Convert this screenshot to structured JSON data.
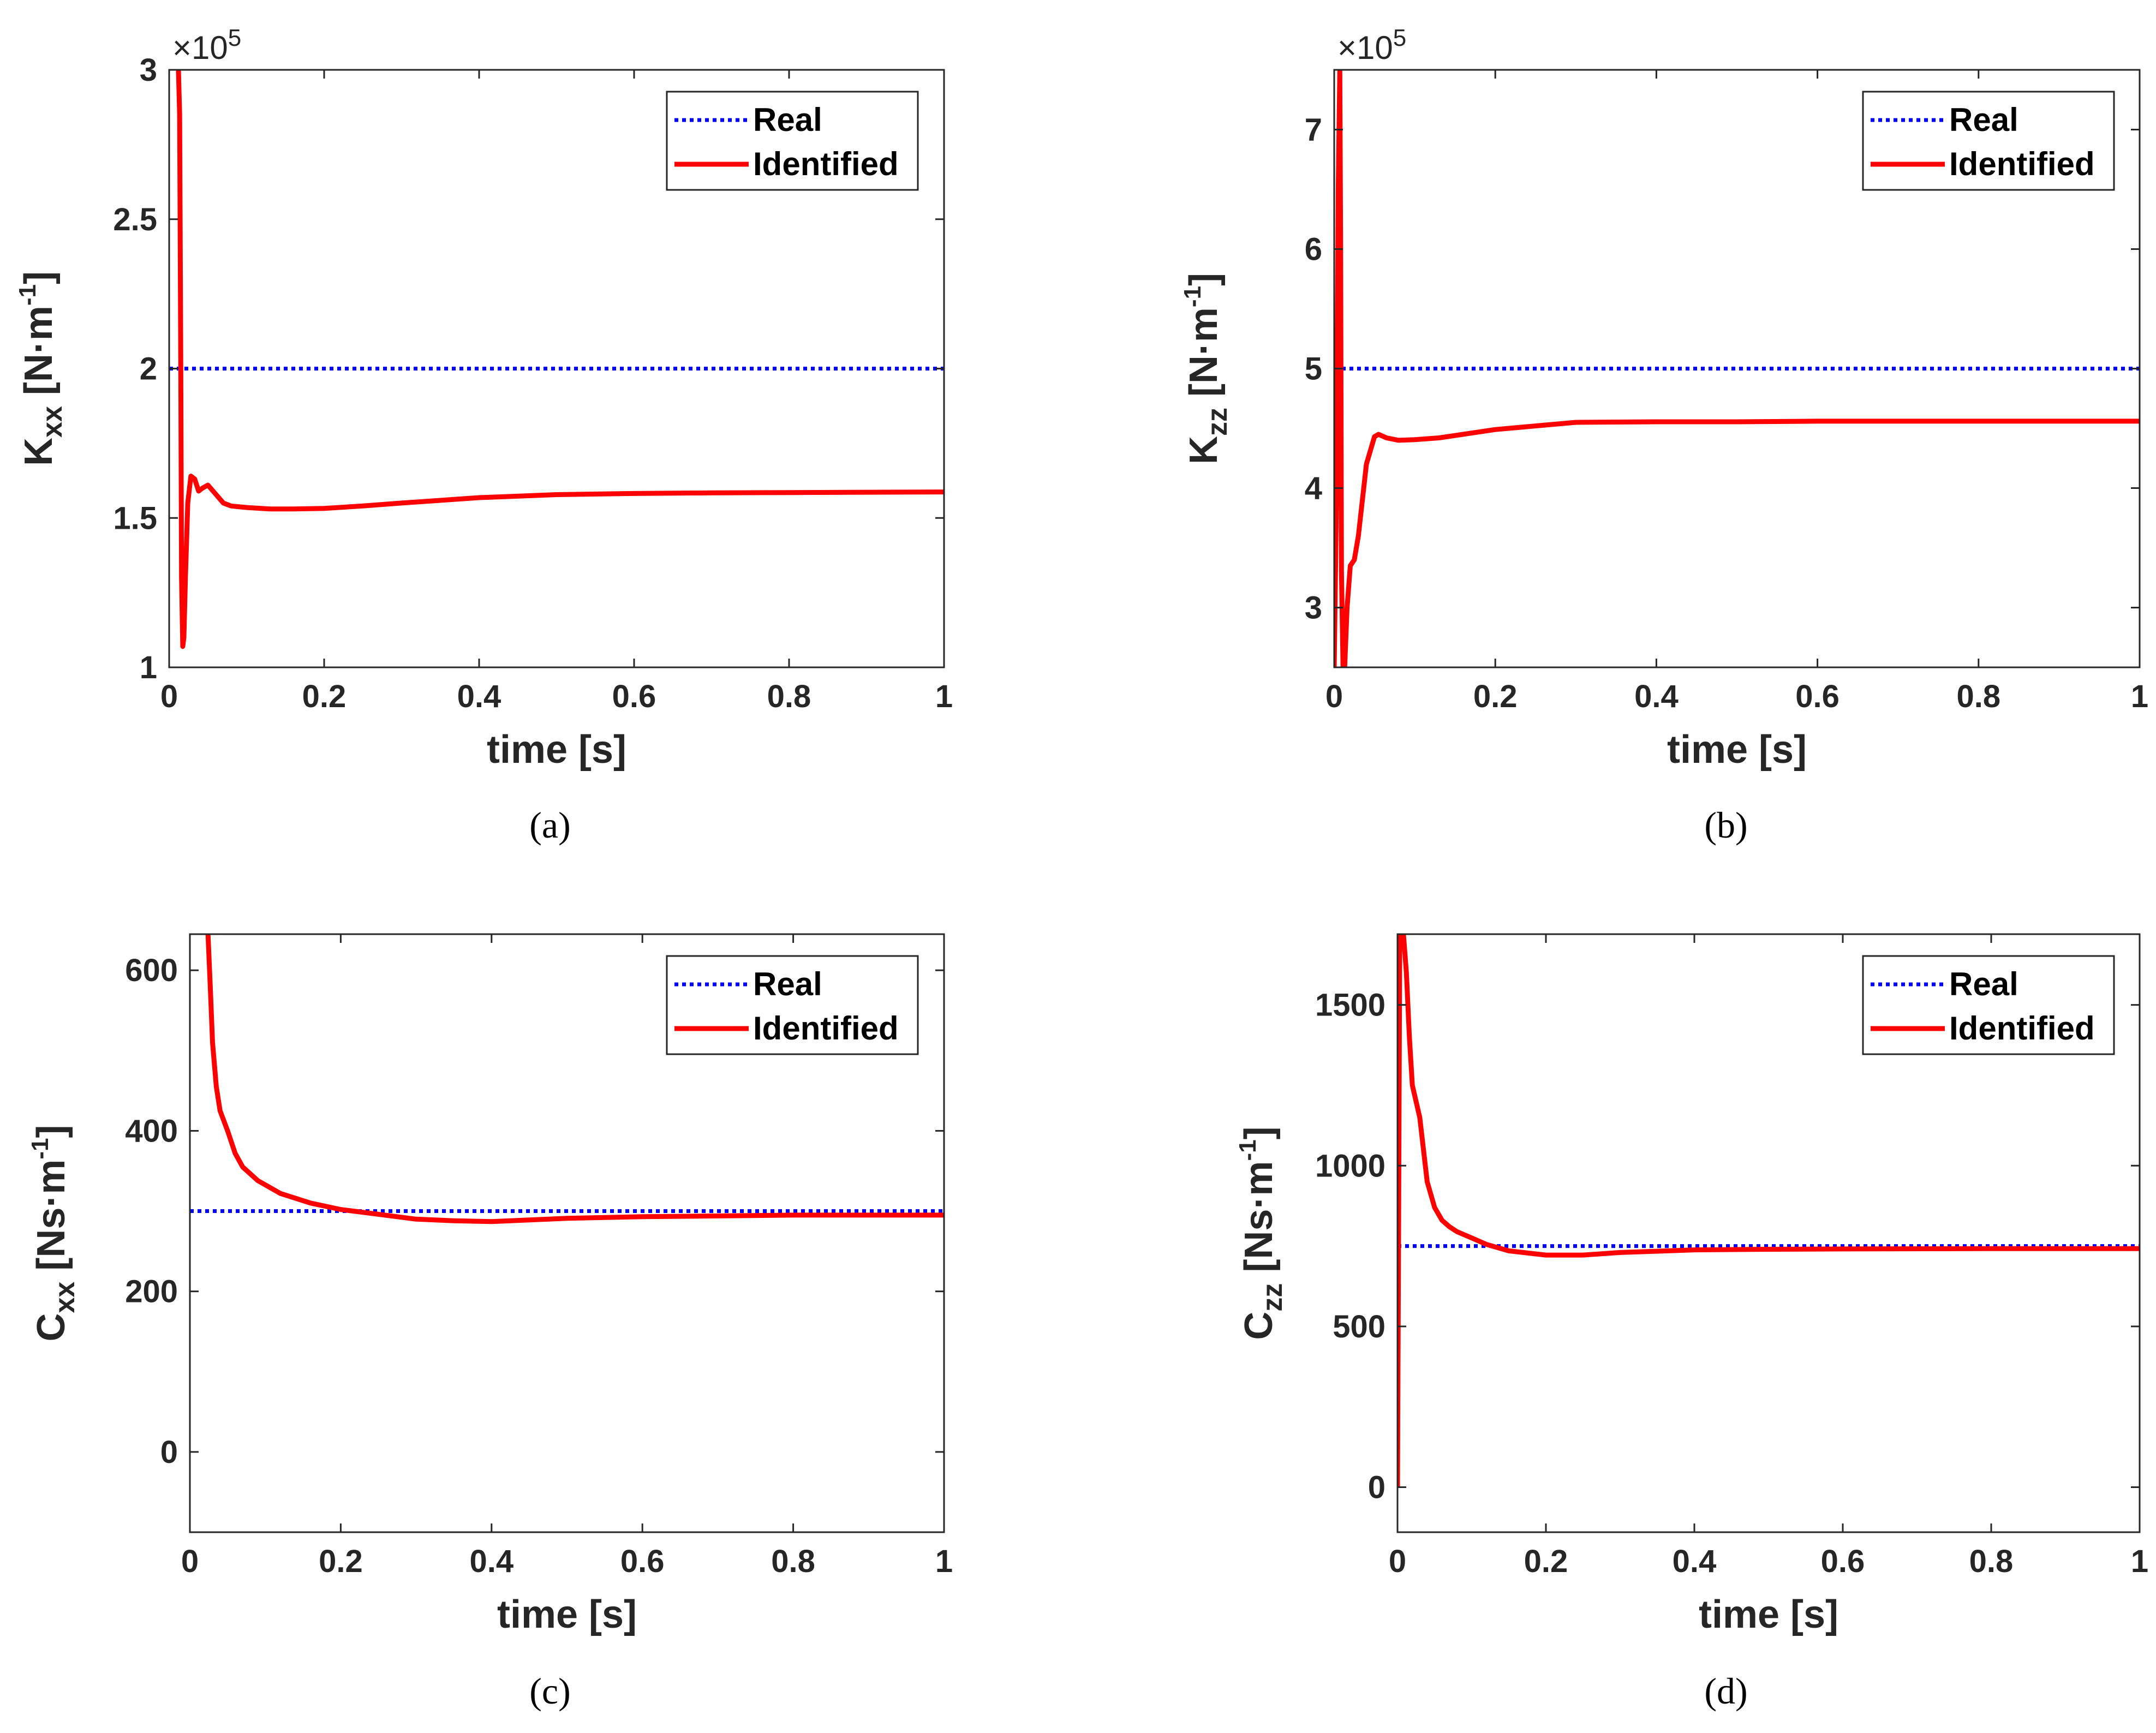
{
  "colors": {
    "real": "#0000ff",
    "identified": "#ff0000",
    "axis": "#262626"
  },
  "legend": {
    "real_label": "Real",
    "identified_label": "Identified"
  },
  "chart_data": [
    {
      "id": "a",
      "type": "line",
      "caption": "(a)",
      "ylabel": {
        "base": "K",
        "sub": "xx",
        "unit_pre": " [N·m",
        "unit_sup": "-1",
        "unit_post": "]"
      },
      "xlabel": "time [s]",
      "exponent": {
        "prefix": "×10",
        "power": "5"
      },
      "xlim": [
        0,
        1
      ],
      "ylim": [
        100000,
        300000
      ],
      "xticks": [
        0,
        0.2,
        0.4,
        0.6,
        0.8,
        1
      ],
      "xtick_labels": [
        "0",
        "0.2",
        "0.4",
        "0.6",
        "0.8",
        "1"
      ],
      "yticks": [
        100000,
        150000,
        200000,
        250000,
        300000
      ],
      "ytick_labels": [
        "1",
        "1.5",
        "2",
        "2.5",
        "3"
      ],
      "series": [
        {
          "name": "Real",
          "x": [
            0,
            1
          ],
          "y": [
            200000,
            200000
          ]
        },
        {
          "name": "Identified",
          "x": [
            0.012,
            0.0135,
            0.015,
            0.016,
            0.0175,
            0.019,
            0.021,
            0.024,
            0.028,
            0.033,
            0.038,
            0.043,
            0.05,
            0.06,
            0.07,
            0.08,
            0.1,
            0.13,
            0.16,
            0.2,
            0.25,
            0.3,
            0.4,
            0.5,
            0.6,
            0.7,
            0.8,
            1.0
          ],
          "y": [
            300000,
            285000,
            200000,
            130000,
            107000,
            110000,
            130000,
            155000,
            164000,
            163000,
            159000,
            160000,
            161000,
            158000,
            155000,
            154000,
            153500,
            153000,
            153000,
            153200,
            154000,
            155000,
            156800,
            157800,
            158200,
            158400,
            158500,
            158700
          ]
        }
      ]
    },
    {
      "id": "b",
      "type": "line",
      "caption": "(b)",
      "ylabel": {
        "base": "K",
        "sub": "zz",
        "unit_pre": " [N·m",
        "unit_sup": "-1",
        "unit_post": "]"
      },
      "xlabel": "time [s]",
      "exponent": {
        "prefix": "×10",
        "power": "5"
      },
      "xlim": [
        0,
        1
      ],
      "ylim": [
        250000,
        750000
      ],
      "xticks": [
        0,
        0.2,
        0.4,
        0.6,
        0.8,
        1
      ],
      "xtick_labels": [
        "0",
        "0.2",
        "0.4",
        "0.6",
        "0.8",
        "1"
      ],
      "yticks": [
        300000,
        400000,
        500000,
        600000,
        700000
      ],
      "ytick_labels": [
        "3",
        "4",
        "5",
        "6",
        "7"
      ],
      "series": [
        {
          "name": "Real",
          "x": [
            0,
            1
          ],
          "y": [
            500000,
            500000
          ]
        },
        {
          "name": "Identified",
          "x": [
            0.0,
            0.003,
            0.005,
            0.007,
            0.008,
            0.009,
            0.011,
            0.013,
            0.016,
            0.02,
            0.025,
            0.03,
            0.04,
            0.05,
            0.055,
            0.065,
            0.08,
            0.1,
            0.13,
            0.2,
            0.3,
            0.4,
            0.5,
            0.6,
            0.8,
            1.0
          ],
          "y": [
            250000,
            400000,
            650000,
            750000,
            600000,
            330000,
            250000,
            250000,
            300000,
            335000,
            340000,
            360000,
            420000,
            443000,
            445000,
            442000,
            440000,
            440500,
            442000,
            449000,
            455000,
            455500,
            455500,
            456000,
            456000,
            456000
          ]
        }
      ]
    },
    {
      "id": "c",
      "type": "line",
      "caption": "(c)",
      "ylabel": {
        "base": "C",
        "sub": "xx",
        "unit_pre": " [Ns·m",
        "unit_sup": "-1",
        "unit_post": "]"
      },
      "xlabel": "time [s]",
      "exponent": null,
      "xlim": [
        0,
        1
      ],
      "ylim": [
        -100,
        645
      ],
      "xticks": [
        0,
        0.2,
        0.4,
        0.6,
        0.8,
        1
      ],
      "xtick_labels": [
        "0",
        "0.2",
        "0.4",
        "0.6",
        "0.8",
        "1"
      ],
      "yticks": [
        0,
        200,
        400,
        600
      ],
      "ytick_labels": [
        "0",
        "200",
        "400",
        "600"
      ],
      "series": [
        {
          "name": "Real",
          "x": [
            0,
            1
          ],
          "y": [
            300,
            300
          ]
        },
        {
          "name": "Identified",
          "x": [
            0.024,
            0.027,
            0.03,
            0.035,
            0.04,
            0.05,
            0.06,
            0.07,
            0.09,
            0.12,
            0.16,
            0.2,
            0.25,
            0.3,
            0.35,
            0.4,
            0.45,
            0.5,
            0.6,
            0.7,
            0.8,
            1.0
          ],
          "y": [
            645,
            580,
            510,
            455,
            425,
            400,
            372,
            355,
            338,
            322,
            310,
            302,
            296,
            290,
            288,
            287,
            289,
            291,
            293,
            294,
            295,
            295
          ]
        }
      ]
    },
    {
      "id": "d",
      "type": "line",
      "caption": "(d)",
      "ylabel": {
        "base": "C",
        "sub": "zz",
        "unit_pre": " [Ns·m",
        "unit_sup": "-1",
        "unit_post": "]"
      },
      "xlabel": "time [s]",
      "exponent": null,
      "xlim": [
        0,
        1
      ],
      "ylim": [
        -140,
        1720
      ],
      "xticks": [
        0,
        0.2,
        0.4,
        0.6,
        0.8,
        1
      ],
      "xtick_labels": [
        "0",
        "0.2",
        "0.4",
        "0.6",
        "0.8",
        "1"
      ],
      "yticks": [
        0,
        500,
        1000,
        1500
      ],
      "ytick_labels": [
        "0",
        "500",
        "1000",
        "1500"
      ],
      "series": [
        {
          "name": "Real",
          "x": [
            0,
            1
          ],
          "y": [
            750,
            750
          ]
        },
        {
          "name": "Identified",
          "x": [
            0.0,
            0.0015,
            0.003,
            0.005,
            0.008,
            0.012,
            0.016,
            0.02,
            0.025,
            0.03,
            0.035,
            0.04,
            0.05,
            0.06,
            0.07,
            0.08,
            0.1,
            0.12,
            0.15,
            0.2,
            0.25,
            0.3,
            0.4,
            0.5,
            0.6,
            0.8,
            1.0
          ],
          "y": [
            0,
            800,
            1720,
            1720,
            1720,
            1600,
            1400,
            1250,
            1200,
            1150,
            1050,
            950,
            870,
            830,
            810,
            795,
            775,
            755,
            735,
            722,
            722,
            730,
            738,
            740,
            741,
            742,
            742
          ]
        }
      ]
    }
  ]
}
